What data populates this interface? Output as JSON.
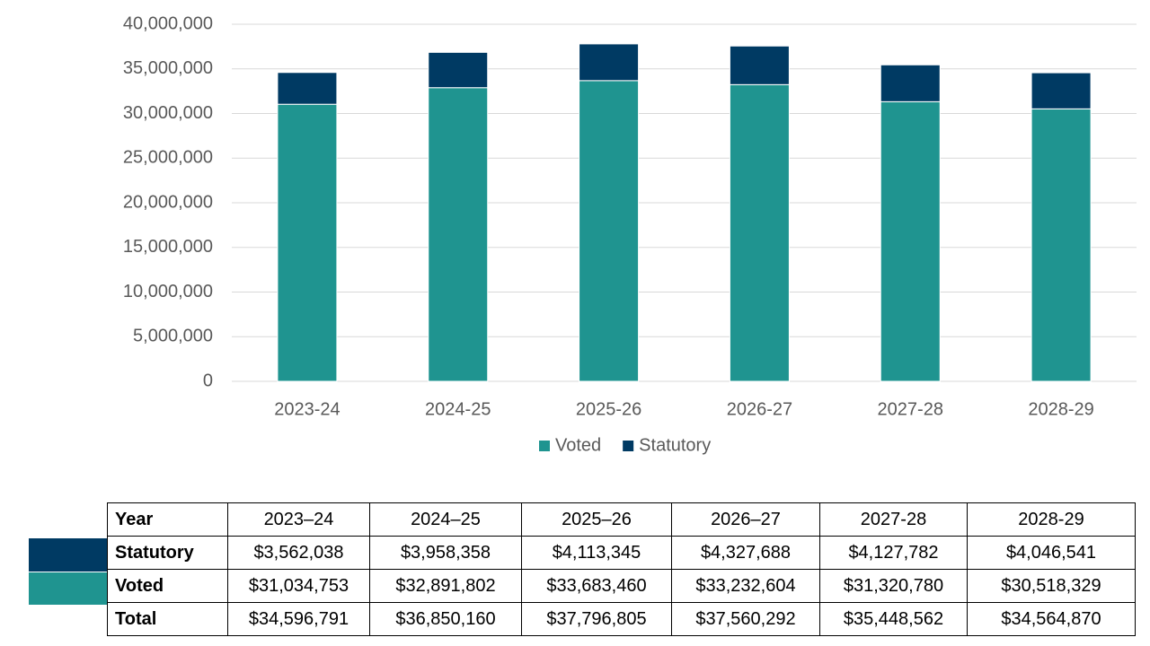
{
  "chart_data": {
    "type": "stacked_bar",
    "categories": [
      "2023-24",
      "2024-25",
      "2025-26",
      "2026-27",
      "2027-28",
      "2028-29"
    ],
    "series": [
      {
        "name": "Voted",
        "color": "#1f9490",
        "values": [
          31034753,
          32891802,
          33683460,
          33232604,
          31320780,
          30518329
        ]
      },
      {
        "name": "Statutory",
        "color": "#003a63",
        "values": [
          3562038,
          3958358,
          4113345,
          4327688,
          4127782,
          4046541
        ]
      }
    ],
    "ylim": [
      0,
      40000000
    ],
    "yticks": [
      0,
      {
        "value": 5000000,
        "label": "5,000,000"
      },
      {
        "value": 10000000,
        "label": "10,000,000"
      },
      {
        "value": 15000000,
        "label": "15,000,000"
      },
      {
        "value": 20000000,
        "label": "20,000,000"
      },
      {
        "value": 25000000,
        "label": "25,000,000"
      },
      {
        "value": 30000000,
        "label": "30,000,000"
      },
      {
        "value": 35000000,
        "label": "35,000,000"
      },
      {
        "value": 40000000,
        "label": "40,000,000"
      }
    ],
    "grid": true,
    "legend": "bottom"
  },
  "table": {
    "header": [
      "Year",
      "2023–24",
      "2024–25",
      "2025–26",
      "2026–27",
      "2027-28",
      "2028-29"
    ],
    "rows": [
      [
        "Statutory",
        "$3,562,038",
        "$3,958,358",
        "$4,113,345",
        "$4,327,688",
        "$4,127,782",
        "$4,046,541"
      ],
      [
        "Voted",
        "$31,034,753",
        "$32,891,802",
        "$33,683,460",
        "$33,232,604",
        "$31,320,780",
        "$30,518,329"
      ],
      [
        "Total",
        "$34,596,791",
        "$36,850,160",
        "$37,796,805",
        "$37,560,292",
        "$35,448,562",
        "$34,564,870"
      ]
    ]
  }
}
